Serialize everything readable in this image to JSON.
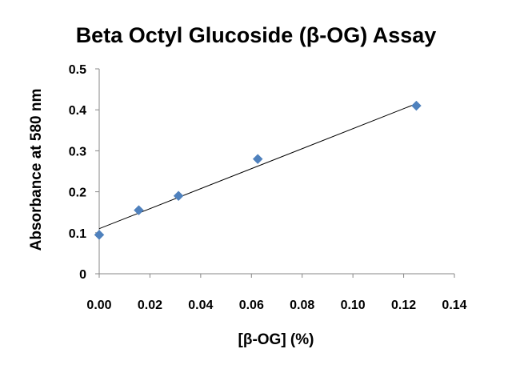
{
  "chart_data": {
    "type": "scatter",
    "title": "Beta Octyl Glucoside (β-OG) Assay",
    "xlabel": "[β-OG] (%)",
    "ylabel": "Absorbance at 580 nm",
    "xlim": [
      0,
      0.14
    ],
    "ylim": [
      0,
      0.5
    ],
    "x_ticks": [
      "0.00",
      "0.02",
      "0.04",
      "0.06",
      "0.08",
      "0.10",
      "0.12",
      "0.14"
    ],
    "y_ticks": [
      "0",
      "0.1",
      "0.2",
      "0.3",
      "0.4",
      "0.5"
    ],
    "grid": false,
    "legend": "none",
    "marker": "diamond",
    "series": [
      {
        "color": "#4F81BD",
        "points": [
          {
            "x": 0.0,
            "y": 0.095
          },
          {
            "x": 0.0156,
            "y": 0.155
          },
          {
            "x": 0.03125,
            "y": 0.19
          },
          {
            "x": 0.0625,
            "y": 0.28
          },
          {
            "x": 0.125,
            "y": 0.41
          }
        ]
      }
    ],
    "trendline": {
      "type": "linear",
      "x": [
        0,
        0.125
      ],
      "y": [
        0.11,
        0.415
      ],
      "color": "#000000"
    }
  }
}
